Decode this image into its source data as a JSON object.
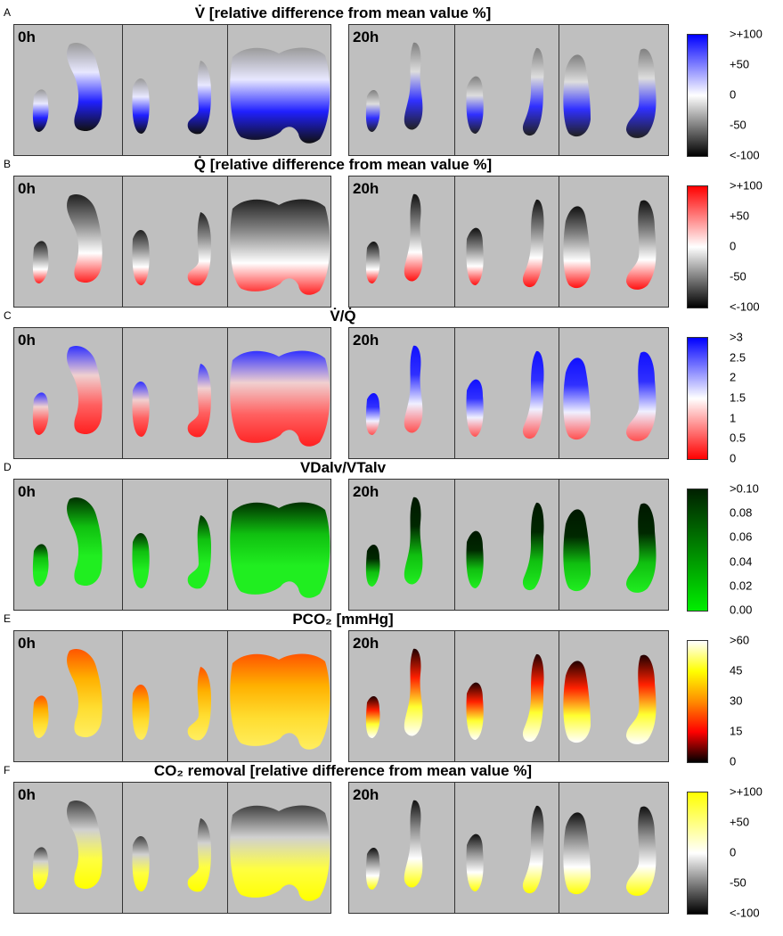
{
  "panels": [
    {
      "letter": "A",
      "title": "V̇ [relative difference from mean value %]",
      "ticks": [
        ">+100",
        "+50",
        "0",
        "-50",
        "<-100"
      ],
      "colors": [
        "#0000ff",
        "#ffffff",
        "#000000"
      ],
      "palette": "bwk"
    },
    {
      "letter": "B",
      "title": "Q̇ [relative difference from mean value %]",
      "ticks": [
        ">+100",
        "+50",
        "0",
        "-50",
        "<-100"
      ],
      "colors": [
        "#ff0000",
        "#ffffff",
        "#000000"
      ],
      "palette": "rwk"
    },
    {
      "letter": "C",
      "title": "V̇/Q̇",
      "ticks": [
        ">3",
        "2.5",
        "2",
        "1.5",
        "1",
        "0.5",
        "0"
      ],
      "colors": [
        "#0000ff",
        "#ffffff",
        "#ff0000"
      ],
      "palette": "bwr"
    },
    {
      "letter": "D",
      "title": "VDalv/VTalv",
      "ticks": [
        ">0.10",
        "0.08",
        "0.06",
        "0.04",
        "0.02",
        "0.00"
      ],
      "colors": [
        "#002000",
        "#00ee00"
      ],
      "palette": "g"
    },
    {
      "letter": "E",
      "title": "PCO₂ [mmHg]",
      "ticks": [
        ">60",
        "45",
        "30",
        "15",
        "0"
      ],
      "colors": [
        "#ffffff",
        "#ffff00",
        "#ff8c00",
        "#ff0000",
        "#000000"
      ],
      "palette": "hot"
    },
    {
      "letter": "F",
      "title": "CO₂ removal [relative difference from mean value %]",
      "ticks": [
        ">+100",
        "+50",
        "0",
        "-50",
        "<-100"
      ],
      "colors": [
        "#ffff00",
        "#ffffff",
        "#000000"
      ],
      "palette": "ywk"
    }
  ],
  "time_labels": [
    "0h",
    "20h"
  ]
}
